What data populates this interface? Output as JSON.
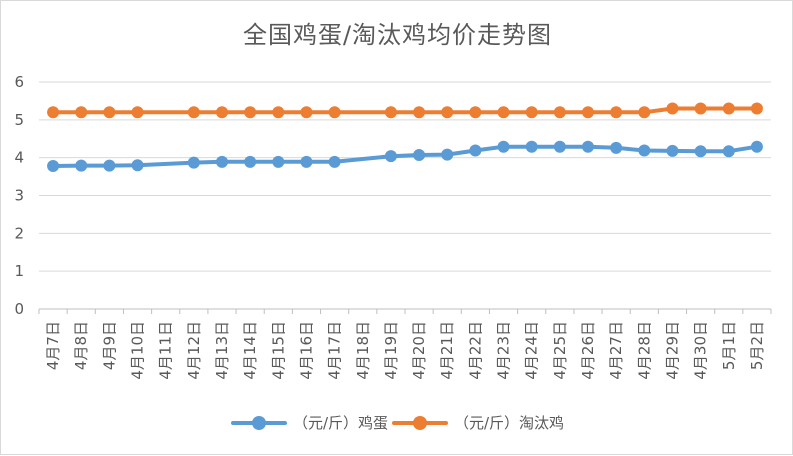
{
  "chart_data": {
    "type": "line",
    "title": "全国鸡蛋/淘汰鸡均价走势图",
    "categories": [
      "4月7日",
      "4月8日",
      "4月9日",
      "4月10日",
      "4月11日",
      "4月12日",
      "4月13日",
      "4月14日",
      "4月15日",
      "4月16日",
      "4月17日",
      "4月18日",
      "4月19日",
      "4月20日",
      "4月21日",
      "4月22日",
      "4月23日",
      "4月24日",
      "4月25日",
      "4月26日",
      "4月27日",
      "4月28日",
      "4月29日",
      "4月30日",
      "5月1日",
      "5月2日"
    ],
    "series": [
      {
        "name": "（元/斤）鸡蛋",
        "color": "#5b9bd5",
        "values": [
          3.78,
          3.79,
          3.79,
          3.8,
          null,
          3.87,
          3.89,
          3.89,
          3.89,
          3.89,
          3.89,
          null,
          4.04,
          4.07,
          4.08,
          4.19,
          4.29,
          4.29,
          4.29,
          4.29,
          4.26,
          4.19,
          4.18,
          4.17,
          4.17,
          4.29
        ]
      },
      {
        "name": "（元/斤）淘汰鸡",
        "color": "#ed7d31",
        "values": [
          5.2,
          5.2,
          5.2,
          5.2,
          null,
          5.2,
          5.2,
          5.2,
          5.2,
          5.2,
          5.2,
          null,
          5.2,
          5.2,
          5.2,
          5.2,
          5.2,
          5.2,
          5.2,
          5.2,
          5.2,
          5.2,
          5.3,
          5.3,
          5.3,
          5.3
        ]
      }
    ],
    "ylim": [
      0,
      6
    ],
    "yticks": [
      0,
      1,
      2,
      3,
      4,
      5,
      6
    ],
    "grid": true,
    "legend_position": "bottom"
  }
}
